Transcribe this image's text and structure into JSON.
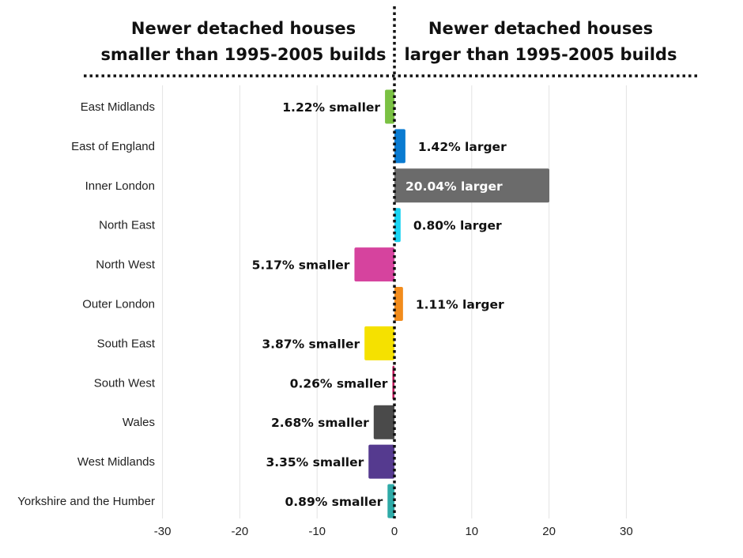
{
  "headers": {
    "left_line1": "Newer detached houses",
    "left_line2": "smaller than 1995-2005 builds",
    "right_line1": "Newer detached houses",
    "right_line2": "larger than 1995-2005 builds"
  },
  "chart_data": {
    "type": "bar",
    "orientation": "horizontal",
    "title": "",
    "xlabel": "",
    "ylabel": "",
    "xlim": [
      -30,
      30
    ],
    "x_ticks": [
      "-30",
      "-20",
      "-10",
      "0",
      "10",
      "20",
      "30"
    ],
    "grid": "vertical",
    "categories": [
      "East Midlands",
      "East of England",
      "Inner London",
      "North East",
      "North West",
      "Outer London",
      "South East",
      "South West",
      "Wales",
      "West Midlands",
      "Yorkshire and the Humber"
    ],
    "values": [
      -1.22,
      1.42,
      20.04,
      0.8,
      -5.17,
      1.11,
      -3.87,
      -0.26,
      -2.68,
      -3.35,
      -0.89
    ],
    "data_labels": [
      "1.22% smaller",
      "1.42% larger",
      "20.04% larger",
      "0.80% larger",
      "5.17% smaller",
      "1.11% larger",
      "3.87% smaller",
      "0.26% smaller",
      "2.68% smaller",
      "3.35% smaller",
      "0.89% smaller"
    ],
    "colors": [
      "#7ac143",
      "#0a7bd1",
      "#6b6b6b",
      "#19d3f2",
      "#d6439e",
      "#f28c1c",
      "#f5e100",
      "#c2185b",
      "#4a4a4a",
      "#553a8f",
      "#2eaaa7"
    ]
  }
}
